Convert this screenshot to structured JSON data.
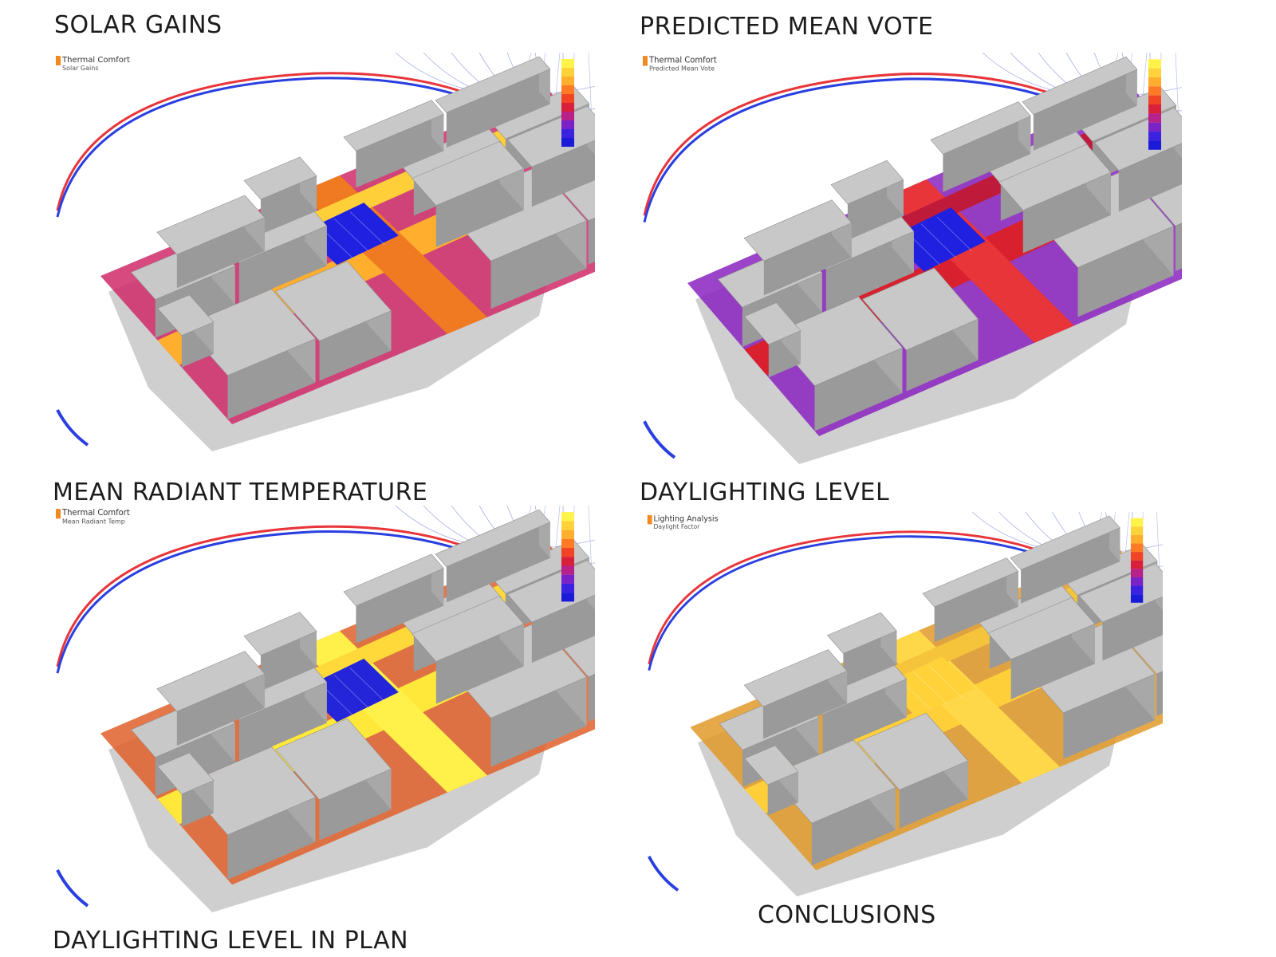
{
  "headings": {
    "solar_gains": "SOLAR GAINS",
    "predicted_mean_vote": "PREDICTED MEAN VOTE",
    "mean_radiant_temperature": "MEAN RADIANT TEMPERATURE",
    "daylighting_level": "DAYLIGHTING LEVEL",
    "daylighting_level_in_plan": "DAYLIGHTING LEVEL IN PLAN",
    "conclusions": "CONCLUSIONS"
  },
  "panels": [
    {
      "id": "solar",
      "title": "Thermal Comfort",
      "subtitle": "Solar Gains",
      "scheme": "solar"
    },
    {
      "id": "pmv",
      "title": "Thermal Comfort",
      "subtitle": "Predicted Mean Vote",
      "scheme": "pmv"
    },
    {
      "id": "mrt",
      "title": "Thermal Comfort",
      "subtitle": "Mean Radiant Temp",
      "scheme": "mrt"
    },
    {
      "id": "daylight",
      "title": "Lighting Analysis",
      "subtitle": "Daylight Factor",
      "scheme": "daylight"
    }
  ],
  "colors": {
    "building": "#b4b4b4",
    "building_top": "#c8c8c8",
    "shadow": "#cfcfcf",
    "sun_path_red": "#e8353a",
    "sun_path_blue": "#2a3fe0",
    "scale": [
      "#fff34a",
      "#ffd23a",
      "#ffae2e",
      "#ff7a25",
      "#f04425",
      "#d8203a",
      "#b8208a",
      "#7a22c8",
      "#3a22e0",
      "#1a1ad8"
    ]
  }
}
